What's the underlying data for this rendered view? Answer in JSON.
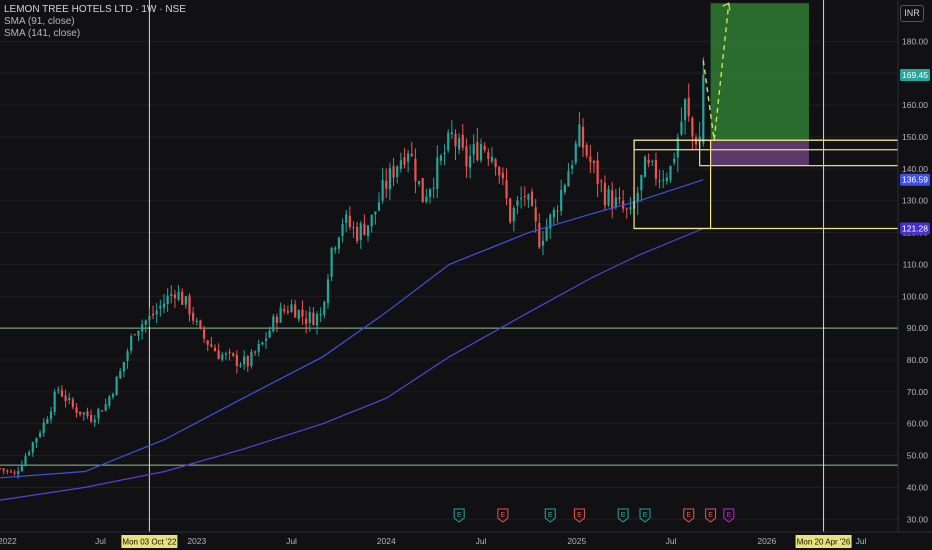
{
  "header": {
    "title": "LEMON TREE HOTELS LTD · 1W · NSE",
    "sma1": "SMA (91, close)",
    "sma2": "SMA (141, close)",
    "currency": "INR"
  },
  "colors": {
    "background": "#111114",
    "up": "#26a69a",
    "down": "#ef5350",
    "sma91": "#3f51e0",
    "sma141": "#5b3fd6",
    "horizontal": "#8bc48a",
    "vertical": "#e8e27a",
    "target": "#2e7d32",
    "stop": "#6a3f7a",
    "zone": "#f0e68c",
    "projection": "#d4e157"
  },
  "chart_data": {
    "type": "candlestick",
    "y_ticks": [
      "30.00",
      "40.00",
      "50.00",
      "60.00",
      "70.00",
      "80.00",
      "90.00",
      "100.00",
      "110.00",
      "120.00",
      "130.00",
      "140.00",
      "150.00",
      "160.00",
      "170.00",
      "180.00"
    ],
    "ylim": [
      26,
      193
    ],
    "x_ticks": [
      {
        "label": "2022",
        "date": "2022-01-03"
      },
      {
        "label": "Jul",
        "date": "2022-07-01"
      },
      {
        "label": "2023",
        "date": "2023-01-02"
      },
      {
        "label": "Jul",
        "date": "2023-07-03"
      },
      {
        "label": "2024",
        "date": "2024-01-01"
      },
      {
        "label": "Jul",
        "date": "2024-07-01"
      },
      {
        "label": "2025",
        "date": "2025-01-01"
      },
      {
        "label": "Jul",
        "date": "2025-07-01"
      },
      {
        "label": "2026",
        "date": "2026-01-01"
      },
      {
        "label": "Jul",
        "date": "2026-07-01"
      }
    ],
    "xlim": [
      "2021-12-20",
      "2026-09-10"
    ],
    "anchor_points": [
      [
        "2021-12-20",
        46
      ],
      [
        "2022-01-17",
        44
      ],
      [
        "2022-02-21",
        54
      ],
      [
        "2022-03-14",
        60
      ],
      [
        "2022-04-11",
        71
      ],
      [
        "2022-05-09",
        65
      ],
      [
        "2022-06-13",
        62
      ],
      [
        "2022-07-11",
        66
      ],
      [
        "2022-08-08",
        76
      ],
      [
        "2022-09-05",
        90
      ],
      [
        "2022-10-03",
        93
      ],
      [
        "2022-10-31",
        98
      ],
      [
        "2022-11-21",
        102
      ],
      [
        "2022-12-19",
        96
      ],
      [
        "2023-01-09",
        88
      ],
      [
        "2023-02-13",
        82
      ],
      [
        "2023-03-13",
        80
      ],
      [
        "2023-04-10",
        79
      ],
      [
        "2023-05-08",
        85
      ],
      [
        "2023-06-05",
        94
      ],
      [
        "2023-07-03",
        97
      ],
      [
        "2023-07-31",
        93
      ],
      [
        "2023-08-28",
        94
      ],
      [
        "2023-09-18",
        115
      ],
      [
        "2023-10-09",
        124
      ],
      [
        "2023-11-06",
        120
      ],
      [
        "2023-12-04",
        124
      ],
      [
        "2023-12-25",
        133
      ],
      [
        "2024-01-22",
        142
      ],
      [
        "2024-02-12",
        147
      ],
      [
        "2024-03-11",
        131
      ],
      [
        "2024-04-08",
        140
      ],
      [
        "2024-05-06",
        150
      ],
      [
        "2024-06-03",
        142
      ],
      [
        "2024-07-01",
        148
      ],
      [
        "2024-07-29",
        144
      ],
      [
        "2024-08-26",
        125
      ],
      [
        "2024-09-23",
        132
      ],
      [
        "2024-10-21",
        118
      ],
      [
        "2024-11-18",
        126
      ],
      [
        "2024-12-16",
        140
      ],
      [
        "2025-01-06",
        150
      ],
      [
        "2025-01-27",
        142
      ],
      [
        "2025-02-24",
        132
      ],
      [
        "2025-03-24",
        128
      ],
      [
        "2025-04-14",
        125
      ],
      [
        "2025-05-12",
        140
      ],
      [
        "2025-06-09",
        138
      ],
      [
        "2025-06-30",
        140
      ],
      [
        "2025-07-28",
        160
      ],
      [
        "2025-08-11",
        150
      ],
      [
        "2025-08-25",
        150
      ]
    ],
    "last_candles": [
      {
        "date": "2025-09-01",
        "o": 148,
        "h": 175,
        "l": 147,
        "c": 169.45
      }
    ],
    "sma91_points": [
      [
        "2021-12-20",
        43
      ],
      [
        "2022-06-01",
        45
      ],
      [
        "2022-11-01",
        55
      ],
      [
        "2023-04-01",
        68
      ],
      [
        "2023-09-01",
        81
      ],
      [
        "2024-01-01",
        95
      ],
      [
        "2024-05-01",
        110
      ],
      [
        "2024-10-01",
        120
      ],
      [
        "2025-02-01",
        126
      ],
      [
        "2025-05-01",
        130
      ],
      [
        "2025-09-01",
        136.59
      ]
    ],
    "sma141_points": [
      [
        "2021-12-20",
        36
      ],
      [
        "2022-06-01",
        40
      ],
      [
        "2022-11-01",
        45
      ],
      [
        "2023-04-01",
        52
      ],
      [
        "2023-09-01",
        60
      ],
      [
        "2024-01-01",
        68
      ],
      [
        "2024-05-01",
        81
      ],
      [
        "2024-10-01",
        95
      ],
      [
        "2025-02-01",
        106
      ],
      [
        "2025-05-01",
        113
      ],
      [
        "2025-09-01",
        121.28
      ]
    ],
    "horizontal_lines": [
      90,
      47
    ],
    "vertical_lines": [
      {
        "date": "2022-10-03",
        "label": "Mon 03 Oct '22"
      },
      {
        "date": "2026-04-20",
        "label": "Mon 20 Apr '26"
      }
    ],
    "zones": [
      {
        "x1": "2025-04-21",
        "x2": "2026-10-01",
        "y1": 146,
        "y2": 149
      },
      {
        "x1": "2025-08-25",
        "x2": "2026-10-01",
        "y1": 141,
        "y2": 149
      },
      {
        "x1": "2025-04-21",
        "x2": "2025-09-15",
        "y1": 121.28,
        "y2": 149
      },
      {
        "x1": "2025-04-21",
        "x2": "2026-10-01",
        "y1": 121.28,
        "y2": 121.28
      }
    ],
    "position": {
      "x1": "2025-09-15",
      "x2": "2026-03-23",
      "target_top": 192,
      "entry": 149,
      "stop": 141
    },
    "projection": [
      [
        "2025-09-01",
        174
      ],
      [
        "2025-09-22",
        149
      ],
      [
        "2025-10-20",
        192
      ]
    ],
    "earnings": [
      {
        "date": "2024-05-20",
        "kind": "up"
      },
      {
        "date": "2024-08-12",
        "kind": "down"
      },
      {
        "date": "2024-11-11",
        "kind": "up"
      },
      {
        "date": "2025-01-06",
        "kind": "down"
      },
      {
        "date": "2025-03-31",
        "kind": "up"
      },
      {
        "date": "2025-05-12",
        "kind": "up"
      },
      {
        "date": "2025-08-04",
        "kind": "down"
      },
      {
        "date": "2025-09-15",
        "kind": "down"
      },
      {
        "date": "2025-10-20",
        "kind": "future"
      }
    ],
    "earnings_marker": "E",
    "price_labels": [
      {
        "value": 169.45,
        "text": "169.45",
        "bg": "#26a69a"
      },
      {
        "value": 136.59,
        "text": "136.59",
        "bg": "#3f51e0"
      },
      {
        "value": 121.28,
        "text": "121.28",
        "bg": "#4a2fd0"
      }
    ]
  }
}
